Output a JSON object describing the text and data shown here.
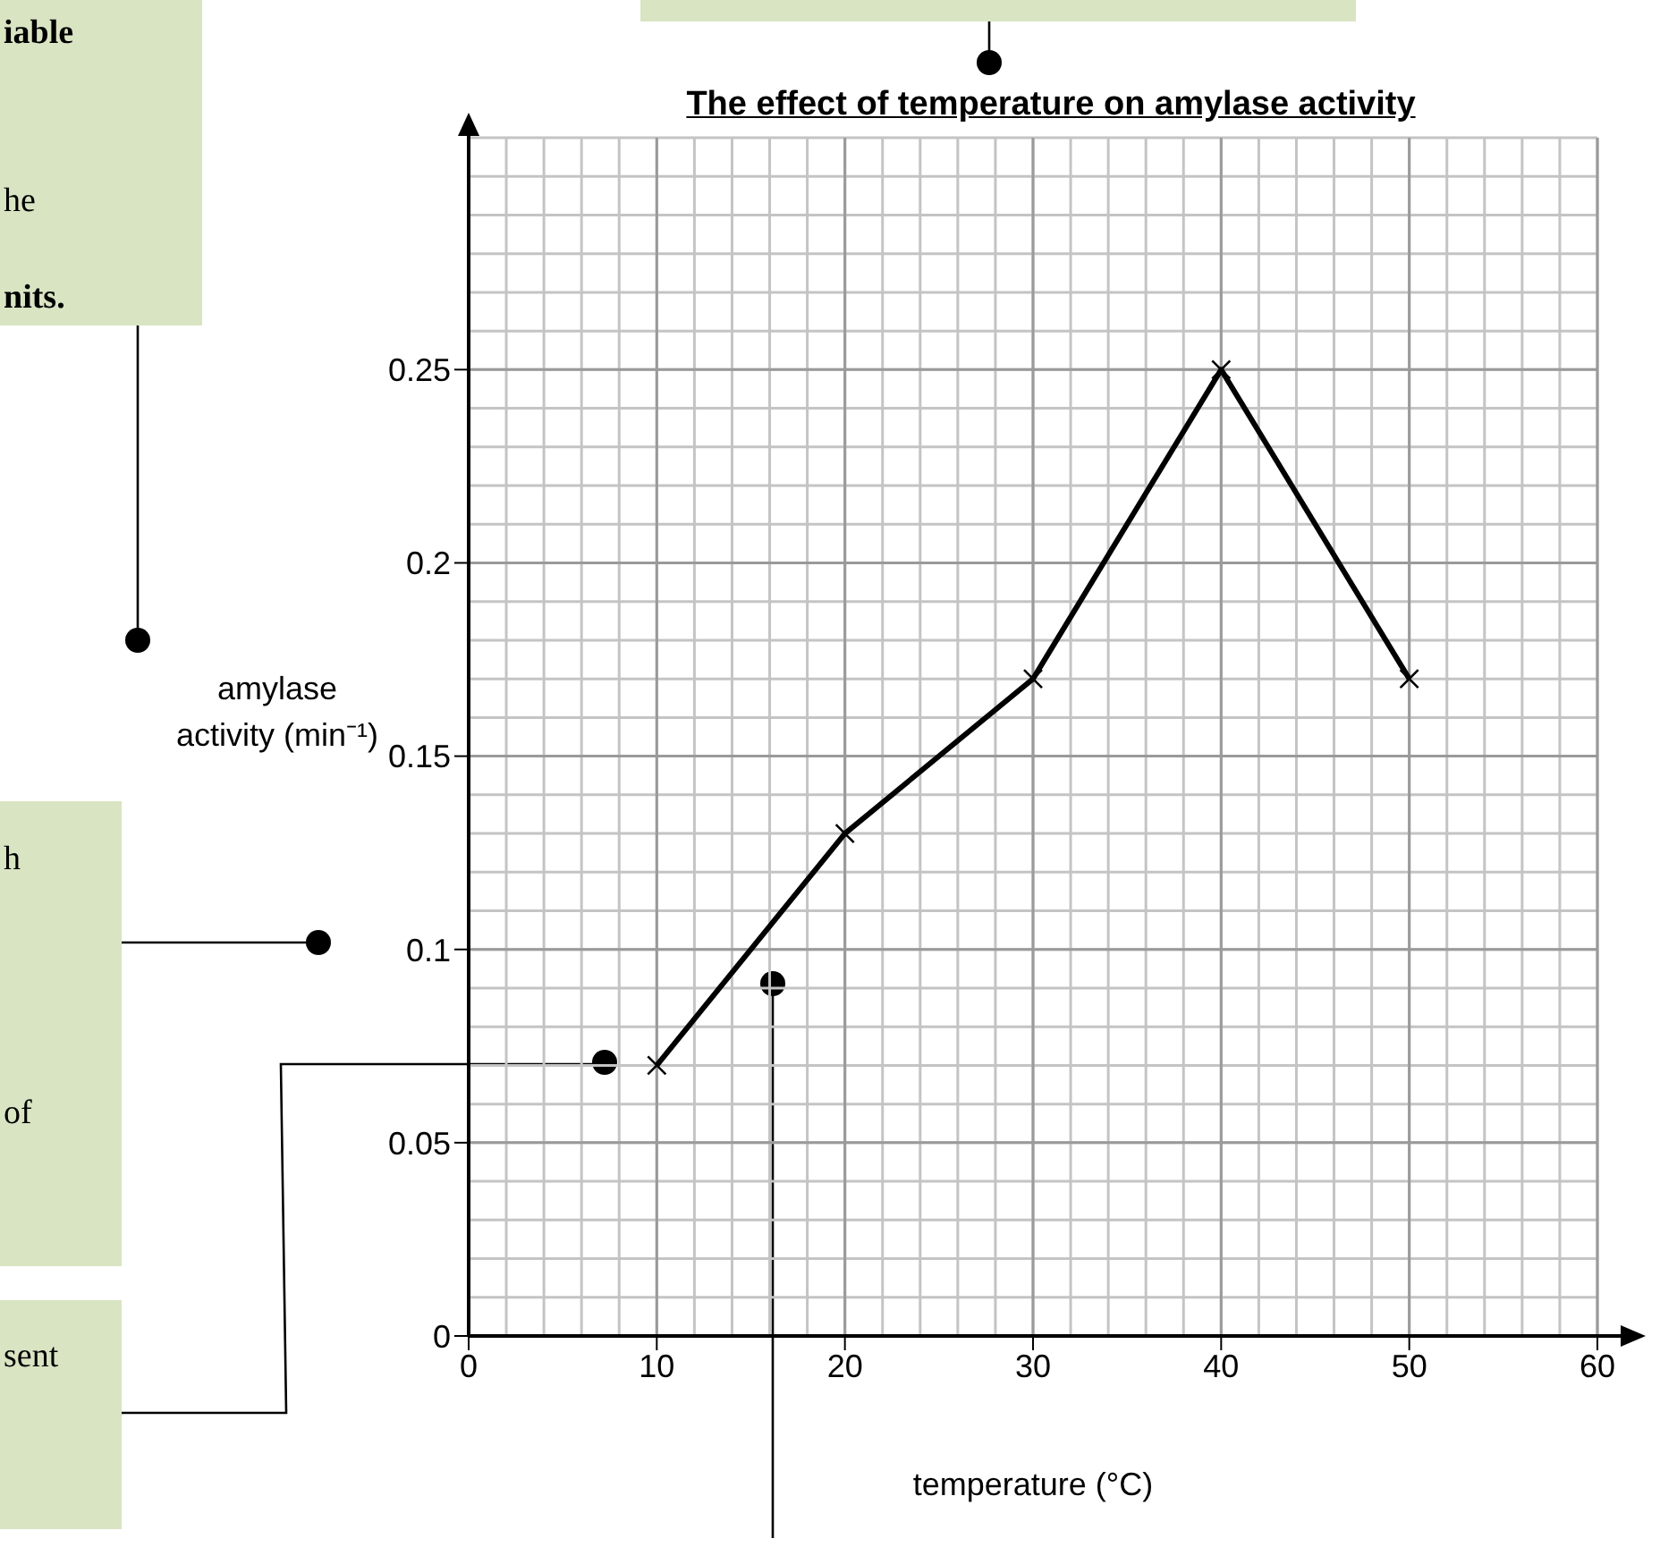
{
  "chart_data": {
    "type": "line",
    "title": "The effect of temperature on amylase activity",
    "xlabel": "temperature (°C)",
    "ylabel": "amylase activity (min⁻¹)",
    "x": [
      10,
      20,
      30,
      40,
      50
    ],
    "series": [
      {
        "color": "#000000",
        "values": [
          0.07,
          0.13,
          0.17,
          0.25,
          0.17
        ]
      }
    ],
    "xlim": [
      0,
      60
    ],
    "xticks": [
      0,
      10,
      20,
      30,
      40,
      50,
      60
    ],
    "ylim": [
      0,
      0.31
    ],
    "yticks": [
      0,
      0.05,
      0.1,
      0.15,
      0.2,
      0.25
    ],
    "grid": true,
    "legend": false,
    "marker": "cross",
    "line_style": "solid",
    "annotations": [
      "iable",
      "he",
      "nits.",
      "h",
      "of",
      "sent"
    ]
  }
}
